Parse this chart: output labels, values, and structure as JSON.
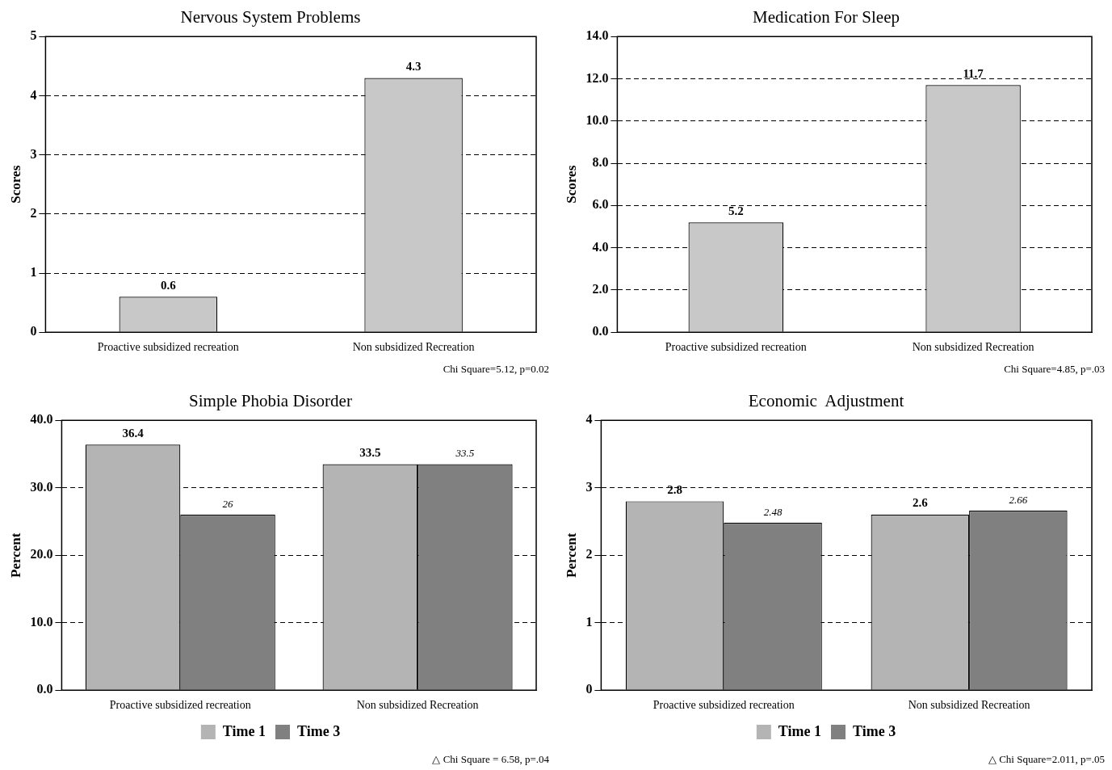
{
  "chart_data": [
    {
      "type": "bar",
      "title": "Nervous System Problems",
      "ylabel": "Scores",
      "categories": [
        "Proactive subsidized recreation",
        "Non subsidized Recreation"
      ],
      "series": [
        {
          "color": "#c8c8c8",
          "values": [
            0.6,
            4.3
          ]
        }
      ],
      "ylim": [
        0,
        5
      ],
      "yticks": [
        0,
        1,
        2,
        3,
        4,
        5
      ],
      "grid": "y",
      "data_labels": true,
      "legend": false,
      "annotations": [
        "Chi Square=5.12, p=0.02"
      ]
    },
    {
      "type": "bar",
      "title": "Medication For Sleep",
      "ylabel": "Scores",
      "categories": [
        "Proactive subsidized recreation",
        "Non subsidized Recreation"
      ],
      "series": [
        {
          "color": "#c8c8c8",
          "values": [
            5.2,
            11.7
          ]
        }
      ],
      "ylim": [
        0,
        14
      ],
      "yticks": [
        {
          "value": 0,
          "label": "0.0"
        },
        {
          "value": 2,
          "label": "2.0"
        },
        {
          "value": 4,
          "label": "4.0"
        },
        {
          "value": 6,
          "label": "6.0"
        },
        {
          "value": 8,
          "label": "8.0"
        },
        {
          "value": 10,
          "label": "10.0"
        },
        {
          "value": 12,
          "label": "12.0"
        },
        {
          "value": 14,
          "label": "14.0"
        }
      ],
      "grid": "y",
      "data_labels": true,
      "legend": false,
      "annotations": [
        "Chi Square=4.85, p=.03"
      ]
    },
    {
      "type": "bar",
      "title": "Simple Phobia Disorder",
      "ylabel": "Percent",
      "categories": [
        "Proactive subsidized recreation",
        "Non subsidized Recreation"
      ],
      "series": [
        {
          "name": "Time 1",
          "color": "#b4b4b4",
          "values": [
            36.4,
            33.5
          ]
        },
        {
          "name": "Time 3",
          "color": "#808080",
          "values": [
            26,
            33.5
          ]
        }
      ],
      "ylim": [
        0,
        40
      ],
      "yticks": [
        {
          "value": 0,
          "label": "0.0"
        },
        {
          "value": 10,
          "label": "10.0"
        },
        {
          "value": 20,
          "label": "20.0"
        },
        {
          "value": 30,
          "label": "30.0"
        },
        {
          "value": 40,
          "label": "40.0"
        }
      ],
      "grid": "y",
      "data_labels": true,
      "legend": "bottom",
      "annotations": [
        "△ Chi Square = 6.58, p=.04"
      ]
    },
    {
      "type": "bar",
      "title": "Economic  Adjustment",
      "ylabel": "Percent",
      "categories": [
        "Proactive subsidized recreation",
        "Non subsidized Recreation"
      ],
      "series": [
        {
          "name": "Time 1",
          "color": "#b4b4b4",
          "values": [
            2.8,
            2.6
          ]
        },
        {
          "name": "Time 3",
          "color": "#808080",
          "values": [
            2.48,
            2.66
          ]
        }
      ],
      "ylim": [
        0,
        4
      ],
      "yticks": [
        0,
        1,
        2,
        3,
        4
      ],
      "grid": "y",
      "data_labels": true,
      "legend": "bottom",
      "annotations": [
        "△ Chi Square=2.011, p=.05"
      ]
    }
  ]
}
